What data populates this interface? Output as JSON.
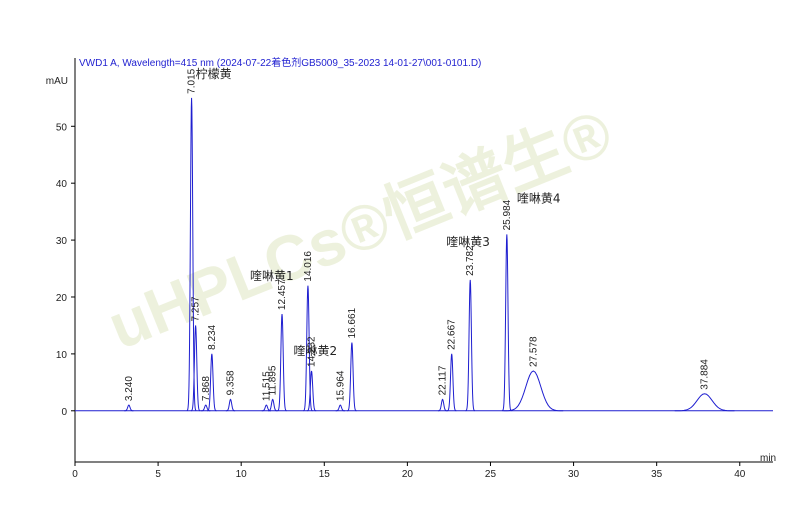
{
  "chart_data": {
    "type": "chromatogram",
    "title": "VWD1 A, Wavelength=415 nm (2024-07-22着色剂GB5009_35-2023  14-01-27\\001-0101.D)",
    "y_label": "mAU",
    "x_label": "min",
    "watermark": "uHPLCs®恒谱生®",
    "x": [
      3.24,
      7.015,
      7.257,
      7.868,
      8.234,
      9.358,
      11.515,
      11.895,
      12.457,
      14.016,
      14.232,
      15.964,
      16.661,
      22.117,
      22.667,
      23.782,
      25.984,
      27.578,
      37.884
    ],
    "x_labels": [
      "3.240",
      "7.015",
      "7.257",
      "7.868",
      "8.234",
      "9.358",
      "11.515",
      "11.895",
      "12.457",
      "14.016",
      "14.232",
      "15.964",
      "16.661",
      "22.117",
      "22.667",
      "23.782",
      "25.984",
      "27.578",
      "37.884"
    ],
    "values": [
      1,
      55,
      15,
      1,
      10,
      2,
      1,
      2,
      17,
      22,
      7,
      1,
      12,
      2,
      10,
      23,
      31,
      7,
      3
    ],
    "color": "#1f1fd0",
    "annotations": [
      "柠檬黄",
      "喹啉黄1",
      "喹啉黄2",
      "喹啉黄3",
      "喹啉黄4"
    ],
    "xlim": [
      0,
      42
    ],
    "ylim": [
      -9,
      62
    ],
    "xticks": [
      0,
      5,
      10,
      15,
      20,
      25,
      30,
      35,
      40
    ],
    "yticks": [
      0,
      10,
      20,
      30,
      40,
      50
    ]
  }
}
